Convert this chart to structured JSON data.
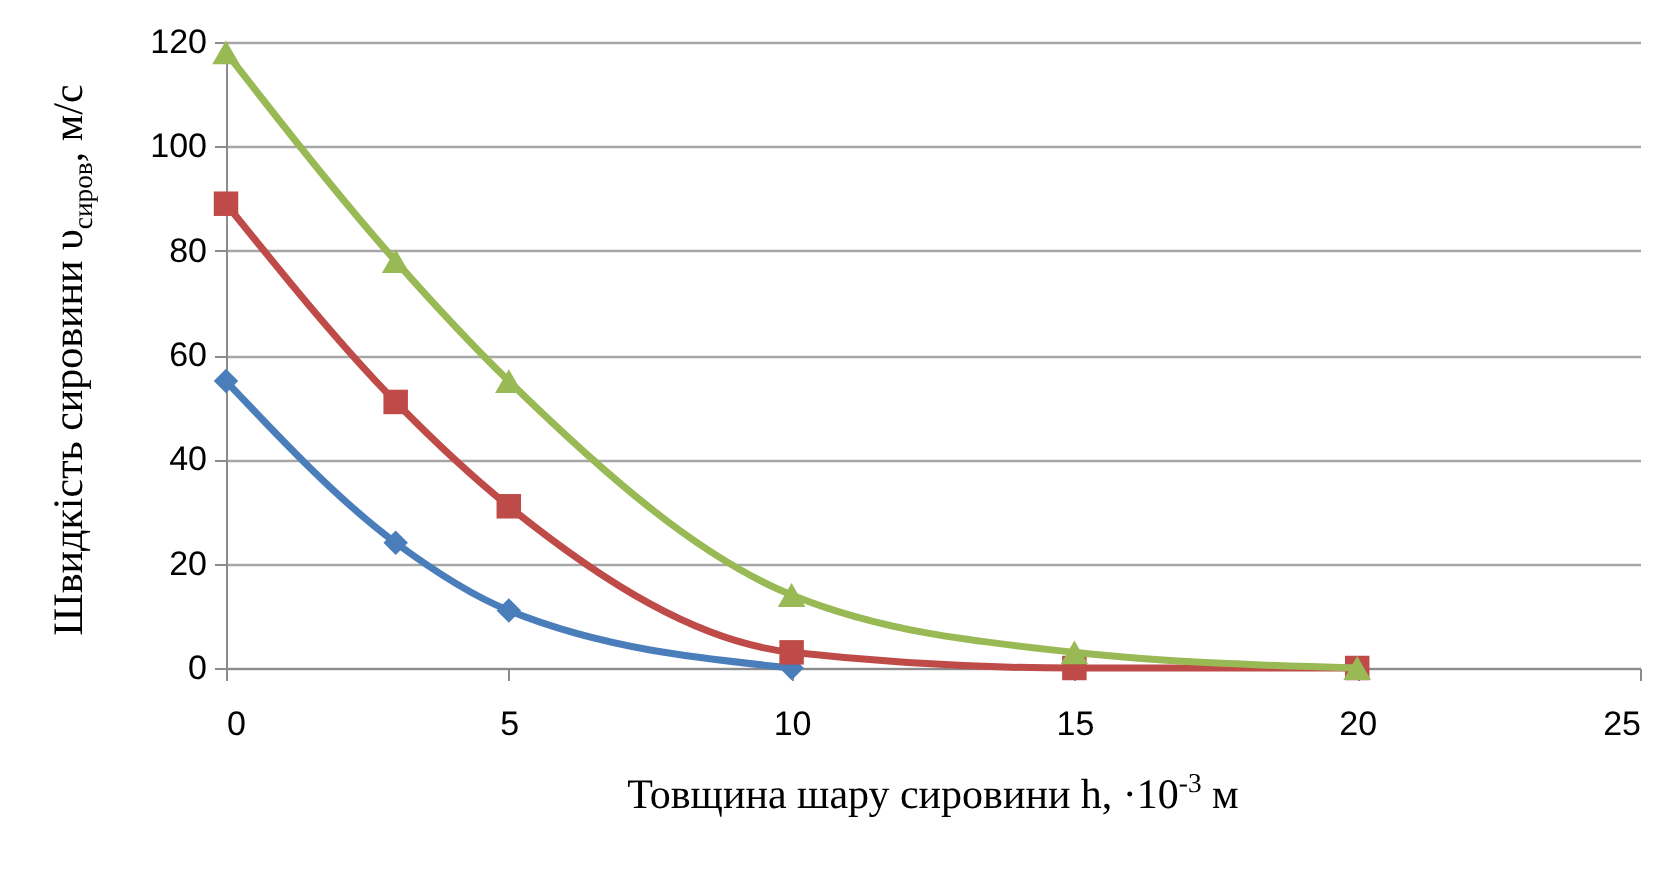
{
  "chart_data": {
    "type": "line",
    "xlabel": "Товщина шару сировини h,  ·10$^{-3}$ м",
    "ylabel": "Швидкість сировини υ$_{сиров}$, м/с",
    "xlim": [
      0,
      25
    ],
    "xticks": [
      0,
      5,
      10,
      15,
      20,
      25
    ],
    "ylim": [
      0,
      120
    ],
    "yticks": [
      0,
      20,
      40,
      60,
      80,
      100,
      120
    ],
    "grid": "y",
    "line_style": "solid",
    "series": [
      {
        "color": "#4a7ebb",
        "marker": "diamond",
        "x": [
          0,
          3,
          5,
          10
        ],
        "values": [
          55,
          24,
          11,
          0
        ]
      },
      {
        "color": "#be4b48",
        "marker": "square",
        "x": [
          0,
          3,
          5,
          10,
          15,
          20
        ],
        "values": [
          89,
          51,
          31,
          3,
          0,
          0
        ]
      },
      {
        "color": "#98b954",
        "marker": "triangle",
        "x": [
          0,
          3,
          5,
          10,
          15,
          20
        ],
        "values": [
          118,
          78,
          55,
          14,
          3,
          0
        ]
      }
    ]
  }
}
